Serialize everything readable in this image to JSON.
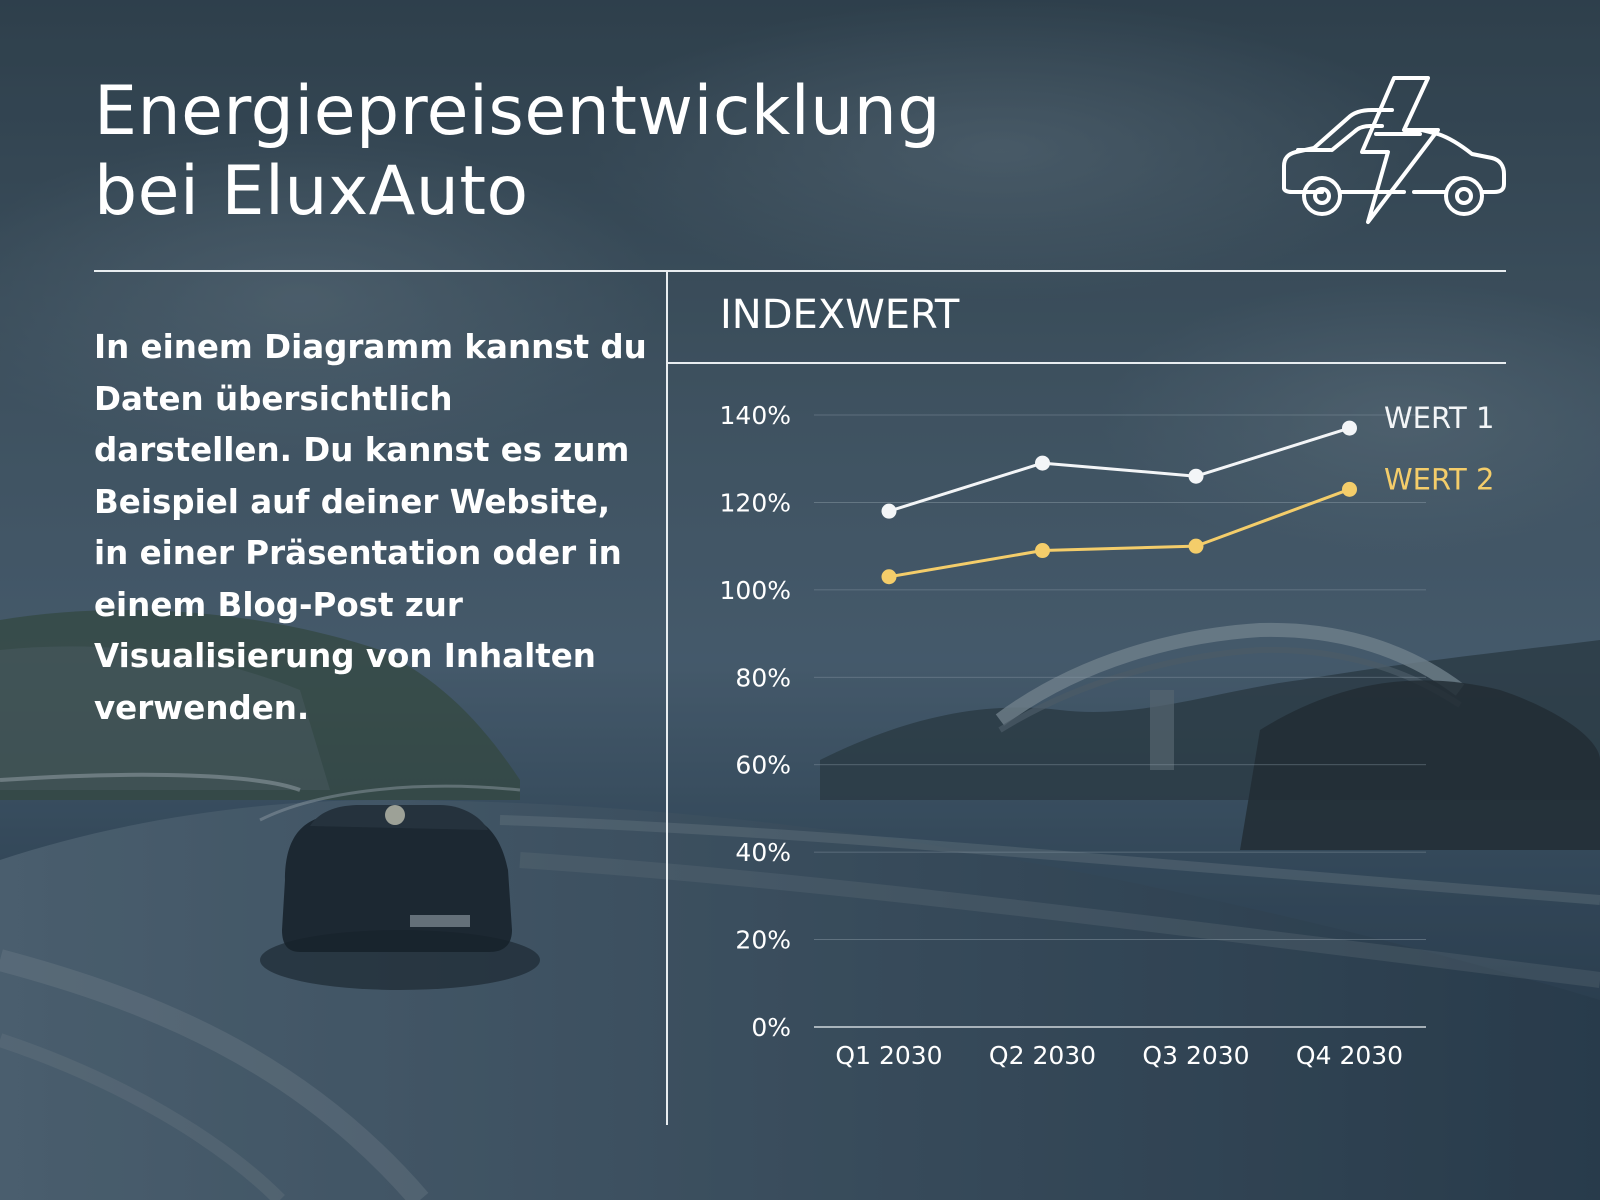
{
  "title": {
    "line1": "Energiepreisentwicklung",
    "line2": "bei EluxAuto"
  },
  "icons": {
    "header_icon": "electric-car-icon"
  },
  "description": "In einem Diagramm kannst du Daten übersichtlich darstellen. Du kannst es zum Beispiel auf deiner Website, in einer Präsentation oder in einem Blog-Post zur Visualisierung von Inhalten verwenden.",
  "chart_heading": "INDEXWERT",
  "colors": {
    "text": "#ffffff",
    "series1": "#f3f5f7",
    "series2": "#f4cd6a",
    "grid": "#8a9aa6"
  },
  "chart_data": {
    "type": "line",
    "categories": [
      "Q1 2030",
      "Q2 2030",
      "Q3 2030",
      "Q4 2030"
    ],
    "series": [
      {
        "name": "WERT 1",
        "values": [
          118,
          129,
          126,
          137
        ]
      },
      {
        "name": "WERT 2",
        "values": [
          103,
          109,
          110,
          123
        ]
      }
    ],
    "yticks": [
      "0%",
      "20%",
      "40%",
      "60%",
      "80%",
      "100%",
      "120%",
      "140%"
    ],
    "ylim": [
      0,
      140
    ],
    "grid": true,
    "legend": "right, at line ends"
  }
}
